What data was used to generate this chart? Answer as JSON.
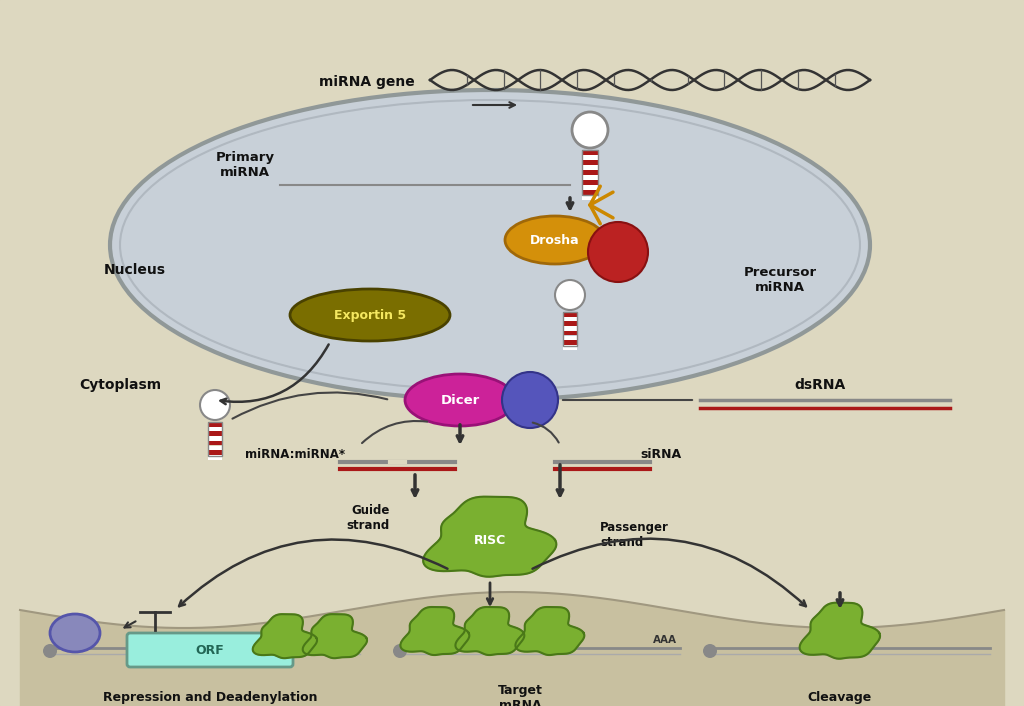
{
  "bg_color": "#ddd8c0",
  "nucleus_fill": "#c8d0d8",
  "nucleus_edge": "#909898",
  "text_color": "#111111",
  "drosha_color": "#d4900a",
  "drosha_edge": "#a06808",
  "dgcr8_color": "#bb2222",
  "exportin_color": "#7a6e00",
  "exportin_text": "#f5e860",
  "dicer_color": "#cc2299",
  "dicer_partner_color": "#5555bb",
  "risc_green": "#7ab030",
  "risc_dark": "#4a7818",
  "strand_red": "#aa1818",
  "text_fontsize": 9,
  "labels": {
    "mirna_gene": "miRNA gene",
    "primary_mirna": "Primary\nmiRNA",
    "nucleus": "Nucleus",
    "drosha": "Drosha",
    "precursor_mirna": "Precursor\nmiRNA",
    "exportin5": "Exportin 5",
    "cytoplasm": "Cytoplasm",
    "dsrna": "dsRNA",
    "dicer": "Dicer",
    "mirna_duplex": "miRNA:miRNA*",
    "sirna": "siRNA",
    "guide_strand": "Guide\nstrand",
    "risc": "RISC",
    "passenger_strand": "Passenger\nstrand",
    "orf": "ORF",
    "repression": "Repression and Deadenylation",
    "target_mrna": "Target\nmRNA",
    "cleavage": "Cleavage"
  }
}
